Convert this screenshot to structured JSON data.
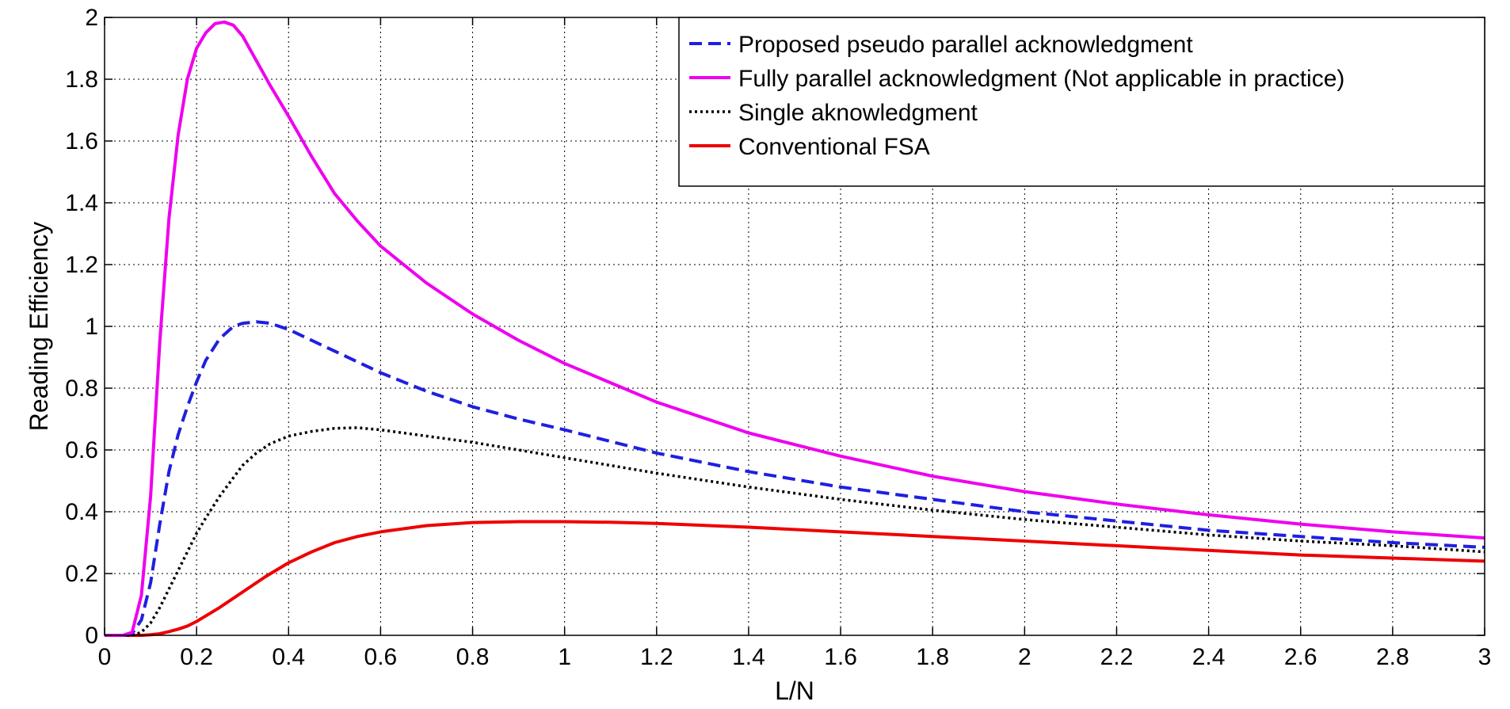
{
  "chart_data": {
    "type": "line",
    "title": "",
    "xlabel": "L/N",
    "ylabel": "Reading Efficiency",
    "xlim": [
      0,
      3
    ],
    "ylim": [
      0,
      2
    ],
    "x_ticks": [
      "0",
      "0.2",
      "0.4",
      "0.6",
      "0.8",
      "1",
      "1.2",
      "1.4",
      "1.6",
      "1.8",
      "2",
      "2.2",
      "2.4",
      "2.6",
      "2.8",
      "3"
    ],
    "y_ticks": [
      "0",
      "0.2",
      "0.4",
      "0.6",
      "0.8",
      "1",
      "1.2",
      "1.4",
      "1.6",
      "1.8",
      "2"
    ],
    "grid": true,
    "legend_position": "top-right",
    "series": [
      {
        "name": "Proposed pseudo parallel acknowledgment",
        "color": "#1f1fe0",
        "style": "dashed",
        "x": [
          0,
          0.04,
          0.06,
          0.08,
          0.1,
          0.12,
          0.14,
          0.16,
          0.18,
          0.2,
          0.22,
          0.25,
          0.28,
          0.3,
          0.33,
          0.36,
          0.4,
          0.45,
          0.5,
          0.6,
          0.7,
          0.8,
          0.9,
          1.0,
          1.2,
          1.4,
          1.6,
          1.8,
          2.0,
          2.2,
          2.4,
          2.6,
          2.8,
          3.0
        ],
        "y": [
          0,
          0,
          0.005,
          0.05,
          0.17,
          0.36,
          0.53,
          0.65,
          0.74,
          0.82,
          0.89,
          0.96,
          1.0,
          1.01,
          1.015,
          1.01,
          0.99,
          0.955,
          0.92,
          0.85,
          0.79,
          0.74,
          0.7,
          0.665,
          0.59,
          0.53,
          0.48,
          0.44,
          0.4,
          0.37,
          0.34,
          0.32,
          0.3,
          0.285
        ]
      },
      {
        "name": "Fully parallel acknowledgment (Not applicable in practice)",
        "color": "#ee00ee",
        "style": "solid",
        "x": [
          0,
          0.04,
          0.06,
          0.08,
          0.1,
          0.12,
          0.14,
          0.16,
          0.18,
          0.2,
          0.22,
          0.24,
          0.26,
          0.28,
          0.3,
          0.33,
          0.36,
          0.4,
          0.45,
          0.5,
          0.55,
          0.6,
          0.7,
          0.8,
          0.9,
          1.0,
          1.2,
          1.4,
          1.6,
          1.8,
          2.0,
          2.2,
          2.4,
          2.6,
          2.8,
          3.0
        ],
        "y": [
          0,
          0,
          0.01,
          0.13,
          0.45,
          0.95,
          1.35,
          1.62,
          1.8,
          1.9,
          1.95,
          1.98,
          1.985,
          1.975,
          1.94,
          1.86,
          1.78,
          1.68,
          1.55,
          1.43,
          1.34,
          1.26,
          1.14,
          1.04,
          0.955,
          0.88,
          0.755,
          0.655,
          0.58,
          0.515,
          0.465,
          0.425,
          0.39,
          0.36,
          0.335,
          0.315
        ]
      },
      {
        "name": "Single aknowledgment",
        "color": "#000000",
        "style": "dotted",
        "x": [
          0,
          0.06,
          0.08,
          0.1,
          0.12,
          0.14,
          0.16,
          0.18,
          0.2,
          0.22,
          0.25,
          0.28,
          0.3,
          0.33,
          0.36,
          0.4,
          0.45,
          0.5,
          0.55,
          0.6,
          0.7,
          0.8,
          0.9,
          1.0,
          1.2,
          1.4,
          1.6,
          1.8,
          2.0,
          2.2,
          2.4,
          2.6,
          2.8,
          3.0
        ],
        "y": [
          0,
          0,
          0.01,
          0.04,
          0.09,
          0.15,
          0.21,
          0.27,
          0.33,
          0.38,
          0.45,
          0.51,
          0.55,
          0.59,
          0.62,
          0.645,
          0.66,
          0.67,
          0.672,
          0.665,
          0.645,
          0.625,
          0.6,
          0.575,
          0.525,
          0.48,
          0.44,
          0.405,
          0.375,
          0.35,
          0.325,
          0.305,
          0.29,
          0.27
        ]
      },
      {
        "name": "Conventional FSA",
        "color": "#ee0000",
        "style": "solid",
        "x": [
          0,
          0.08,
          0.1,
          0.12,
          0.14,
          0.16,
          0.18,
          0.2,
          0.25,
          0.3,
          0.35,
          0.4,
          0.45,
          0.5,
          0.55,
          0.6,
          0.7,
          0.8,
          0.9,
          1.0,
          1.1,
          1.2,
          1.4,
          1.6,
          1.8,
          2.0,
          2.2,
          2.4,
          2.6,
          2.8,
          3.0
        ],
        "y": [
          0,
          0,
          0.002,
          0.005,
          0.012,
          0.02,
          0.03,
          0.045,
          0.09,
          0.14,
          0.19,
          0.235,
          0.27,
          0.3,
          0.32,
          0.335,
          0.355,
          0.365,
          0.368,
          0.368,
          0.366,
          0.362,
          0.35,
          0.335,
          0.32,
          0.305,
          0.29,
          0.275,
          0.26,
          0.25,
          0.24
        ]
      }
    ]
  }
}
